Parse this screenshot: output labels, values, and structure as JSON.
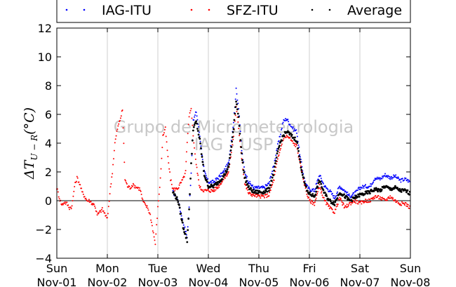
{
  "chart_data": {
    "type": "scatter",
    "ylabel": "ΔT_{U−R}(°C)",
    "ylabel_display": "ΔT",
    "ylabel_sub": "U − R",
    "ylabel_unit": "(°C)",
    "ylim": [
      -4,
      12
    ],
    "xlim": [
      0,
      7
    ],
    "yticks": [
      -4,
      -2,
      0,
      2,
      4,
      6,
      8,
      10,
      12
    ],
    "xticks": [
      {
        "x": 0,
        "day": "Sun",
        "date": "Nov-01"
      },
      {
        "x": 1,
        "day": "Mon",
        "date": "Nov-02"
      },
      {
        "x": 2,
        "day": "Tue",
        "date": "Nov-03"
      },
      {
        "x": 3,
        "day": "Wed",
        "date": "Nov-04"
      },
      {
        "x": 4,
        "day": "Thu",
        "date": "Nov-05"
      },
      {
        "x": 5,
        "day": "Fri",
        "date": "Nov-06"
      },
      {
        "x": 6,
        "day": "Sat",
        "date": "Nov-07"
      },
      {
        "x": 7,
        "day": "Sun",
        "date": "Nov-08"
      }
    ],
    "grid": "vertical",
    "legend_position": "top",
    "watermark": [
      "Grupo de Micrometeorologia",
      "IAG - USP"
    ],
    "series": [
      {
        "name": "IAG-ITU",
        "color": "#0000ff",
        "x": [
          2.3,
          2.4,
          2.5,
          2.58,
          2.62,
          2.66,
          2.7,
          2.76,
          2.83,
          2.92,
          3.0,
          3.1,
          3.2,
          3.3,
          3.4,
          3.5,
          3.55,
          3.6,
          3.66,
          3.72,
          3.8,
          3.9,
          4.0,
          4.1,
          4.2,
          4.3,
          4.35,
          4.42,
          4.48,
          4.55,
          4.62,
          4.68,
          4.75,
          4.82,
          4.9,
          4.95,
          5.0,
          5.1,
          5.2,
          5.3,
          5.4,
          5.5,
          5.6,
          5.7,
          5.8,
          5.9,
          6.0,
          6.1,
          6.2,
          6.3,
          6.4,
          6.5,
          6.6,
          6.7,
          6.8,
          6.9,
          7.0
        ],
        "y": [
          0.6,
          0.0,
          -1.5,
          -2.5,
          -0.5,
          2.0,
          5.5,
          6.2,
          4.5,
          2.0,
          1.3,
          1.3,
          1.6,
          2.0,
          2.6,
          5.5,
          7.7,
          6.5,
          3.5,
          2.0,
          1.3,
          0.9,
          0.9,
          0.9,
          1.2,
          2.5,
          3.5,
          4.5,
          5.5,
          5.7,
          5.3,
          5.0,
          4.8,
          3.0,
          1.5,
          1.0,
          0.8,
          0.7,
          1.8,
          1.0,
          0.7,
          0.2,
          1.0,
          0.7,
          0.3,
          0.5,
          0.9,
          1.0,
          1.0,
          1.6,
          1.5,
          1.8,
          1.6,
          1.7,
          1.4,
          1.5,
          1.3
        ]
      },
      {
        "name": "SFZ-ITU",
        "color": "#ff0000",
        "x": [
          0.0,
          0.05,
          0.1,
          0.15,
          0.2,
          0.25,
          0.3,
          0.35,
          0.4,
          0.45,
          0.5,
          0.55,
          0.6,
          0.65,
          0.7,
          0.75,
          0.8,
          0.85,
          0.9,
          0.95,
          1.0,
          1.05,
          1.1,
          1.15,
          1.2,
          1.25,
          1.3,
          1.35,
          1.4,
          1.45,
          1.5,
          1.55,
          1.6,
          1.65,
          1.7,
          1.75,
          1.8,
          1.85,
          1.9,
          1.95,
          2.0,
          2.05,
          2.1,
          2.15,
          2.2,
          2.25,
          2.3,
          2.35,
          2.4,
          2.45,
          2.5,
          2.55,
          2.58,
          2.62,
          2.66,
          2.7,
          2.76,
          2.83,
          2.92,
          3.0,
          3.1,
          3.2,
          3.3,
          3.4,
          3.5,
          3.55,
          3.6,
          3.66,
          3.72,
          3.8,
          3.9,
          4.0,
          4.1,
          4.2,
          4.3,
          4.35,
          4.42,
          4.48,
          4.55,
          4.62,
          4.68,
          4.75,
          4.82,
          4.9,
          4.95,
          5.0,
          5.1,
          5.2,
          5.3,
          5.4,
          5.5,
          5.6,
          5.7,
          5.8,
          5.9,
          6.0,
          6.1,
          6.2,
          6.3,
          6.4,
          6.5,
          6.6,
          6.7,
          6.8,
          6.9,
          7.0
        ],
        "y": [
          0.9,
          0.2,
          -0.3,
          -0.1,
          -0.2,
          -0.5,
          -0.4,
          1.0,
          1.6,
          1.2,
          0.6,
          0.3,
          0.0,
          0.0,
          -0.2,
          -0.3,
          -1.0,
          -0.8,
          -0.6,
          -0.9,
          -1.3,
          0.5,
          2.0,
          4.0,
          5.0,
          5.6,
          6.3,
          1.5,
          1.0,
          0.9,
          1.1,
          1.0,
          0.9,
          0.8,
          0.0,
          -0.3,
          -0.5,
          -1.0,
          -2.0,
          -3.0,
          -0.5,
          1.5,
          4.5,
          5.0,
          3.0,
          1.5,
          0.8,
          0.8,
          0.9,
          1.2,
          1.5,
          2.0,
          4.0,
          5.8,
          6.5,
          4.5,
          2.5,
          0.9,
          0.7,
          0.7,
          0.7,
          1.0,
          1.5,
          2.0,
          4.5,
          6.5,
          5.0,
          3.0,
          1.2,
          0.5,
          0.4,
          0.3,
          0.3,
          0.4,
          1.5,
          2.5,
          3.5,
          4.3,
          4.5,
          4.3,
          4.0,
          3.8,
          2.5,
          1.2,
          0.5,
          0.0,
          -0.2,
          1.0,
          0.0,
          -0.5,
          -0.8,
          0.2,
          -0.5,
          -0.2,
          0.0,
          -0.2,
          0.0,
          0.0,
          0.3,
          0.2,
          0.0,
          0.3,
          0.0,
          -0.2,
          -0.2,
          -0.5
        ]
      },
      {
        "name": "Average",
        "color": "#000000",
        "x": [
          2.3,
          2.4,
          2.5,
          2.58,
          2.62,
          2.66,
          2.7,
          2.76,
          2.83,
          2.92,
          3.0,
          3.1,
          3.2,
          3.3,
          3.4,
          3.5,
          3.55,
          3.6,
          3.66,
          3.72,
          3.8,
          3.9,
          4.0,
          4.1,
          4.2,
          4.3,
          4.35,
          4.42,
          4.48,
          4.55,
          4.62,
          4.68,
          4.75,
          4.82,
          4.9,
          4.95,
          5.0,
          5.1,
          5.2,
          5.3,
          5.4,
          5.5,
          5.6,
          5.7,
          5.8,
          5.9,
          6.0,
          6.1,
          6.2,
          6.3,
          6.4,
          6.5,
          6.6,
          6.7,
          6.8,
          6.9,
          7.0
        ],
        "y": [
          0.6,
          0.0,
          -1.8,
          -2.8,
          -0.5,
          2.5,
          5.0,
          5.5,
          4.2,
          1.8,
          1.0,
          1.0,
          1.3,
          1.7,
          2.3,
          5.0,
          7.0,
          5.8,
          3.2,
          1.6,
          0.9,
          0.6,
          0.6,
          0.6,
          0.8,
          2.0,
          3.0,
          4.0,
          4.5,
          4.8,
          4.6,
          4.4,
          4.2,
          2.6,
          1.3,
          0.7,
          0.5,
          0.3,
          1.4,
          0.5,
          0.0,
          -0.2,
          0.6,
          0.3,
          0.0,
          0.2,
          0.4,
          0.5,
          0.6,
          0.8,
          0.7,
          1.0,
          0.8,
          0.9,
          0.7,
          0.7,
          0.5
        ]
      }
    ]
  }
}
